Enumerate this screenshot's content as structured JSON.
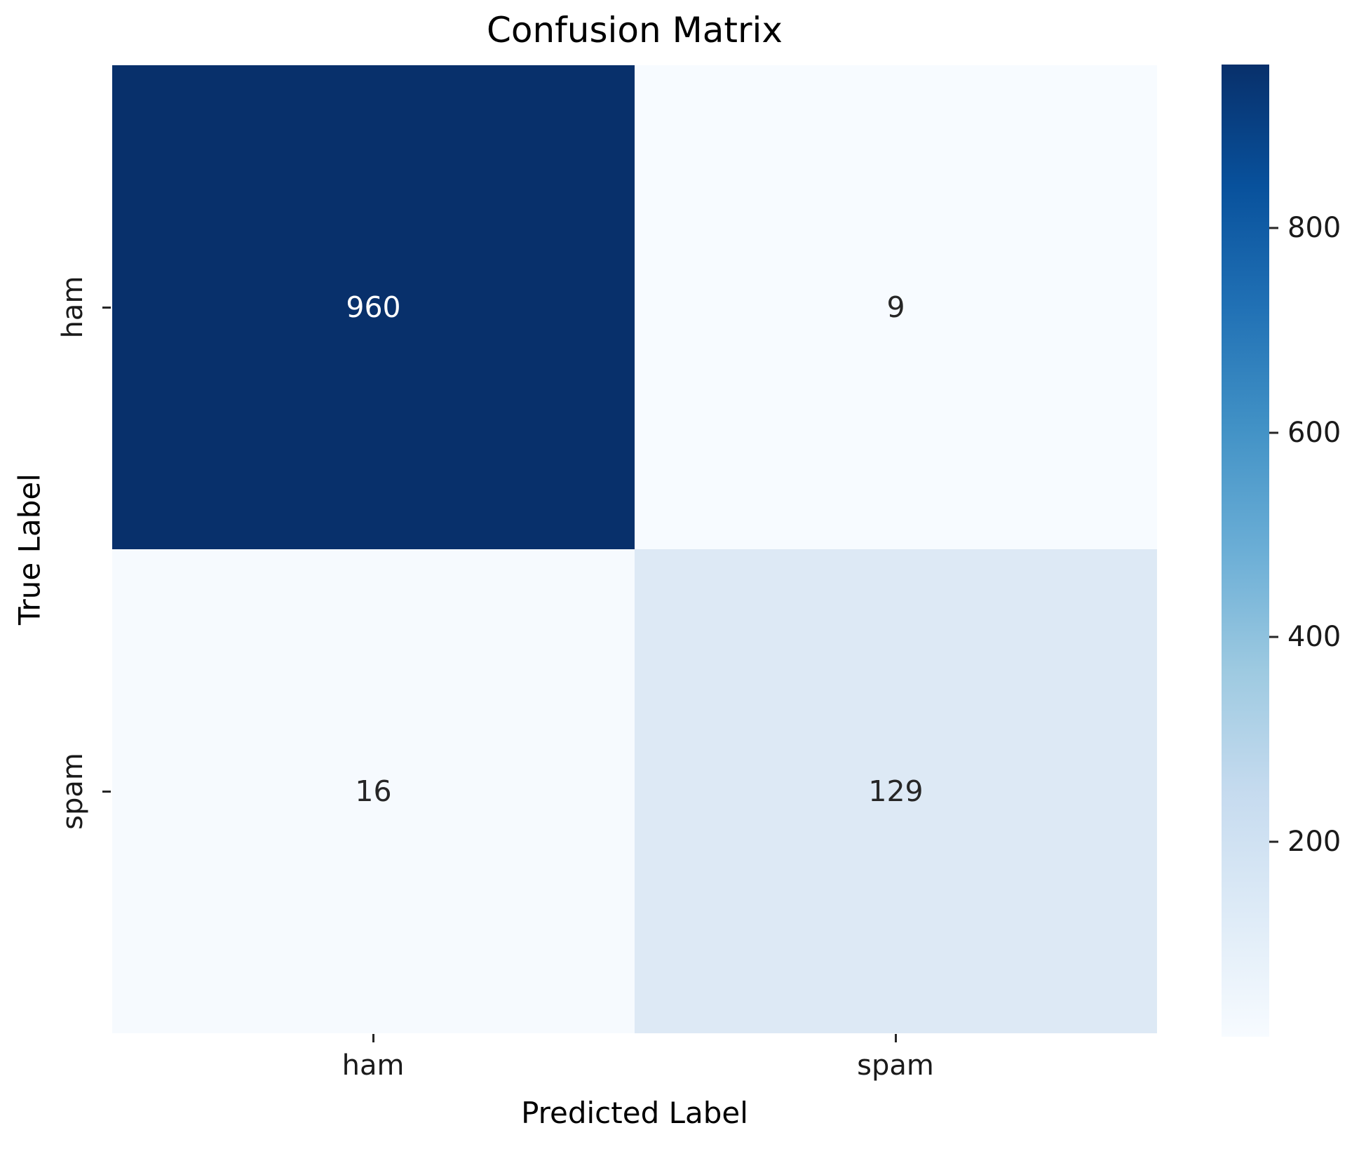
{
  "chart_data": {
    "type": "heatmap",
    "title": "Confusion Matrix",
    "xlabel": "Predicted Label",
    "ylabel": "True Label",
    "x_categories": [
      "ham",
      "spam"
    ],
    "y_categories": [
      "ham",
      "spam"
    ],
    "values": [
      [
        960,
        9
      ],
      [
        16,
        129
      ]
    ],
    "colormap": "Blues",
    "colorbar": {
      "vmin": 9,
      "vmax": 960,
      "ticks": [
        200,
        400,
        600,
        800
      ],
      "position": "right"
    },
    "grid": false,
    "legend": false
  },
  "presentation": {
    "cell_bg": [
      [
        "#08306b",
        "#f7fbff"
      ],
      [
        "#f6fafe",
        "#dde9f5"
      ]
    ],
    "cell_fg": [
      [
        "#ffffff",
        "#262626"
      ],
      [
        "#262626",
        "#262626"
      ]
    ],
    "accent_dark_blue": "#08306b",
    "accent_light_blue": "#f7fbff",
    "colorbar_stops": [
      {
        "p": 0,
        "c": "#f7fbff"
      },
      {
        "p": 12.5,
        "c": "#deebf7"
      },
      {
        "p": 25,
        "c": "#c6dbef"
      },
      {
        "p": 37.5,
        "c": "#9ecae1"
      },
      {
        "p": 50,
        "c": "#6baed6"
      },
      {
        "p": 62.5,
        "c": "#4292c6"
      },
      {
        "p": 75,
        "c": "#2171b5"
      },
      {
        "p": 87.5,
        "c": "#08519c"
      },
      {
        "p": 100,
        "c": "#08306b"
      }
    ]
  }
}
